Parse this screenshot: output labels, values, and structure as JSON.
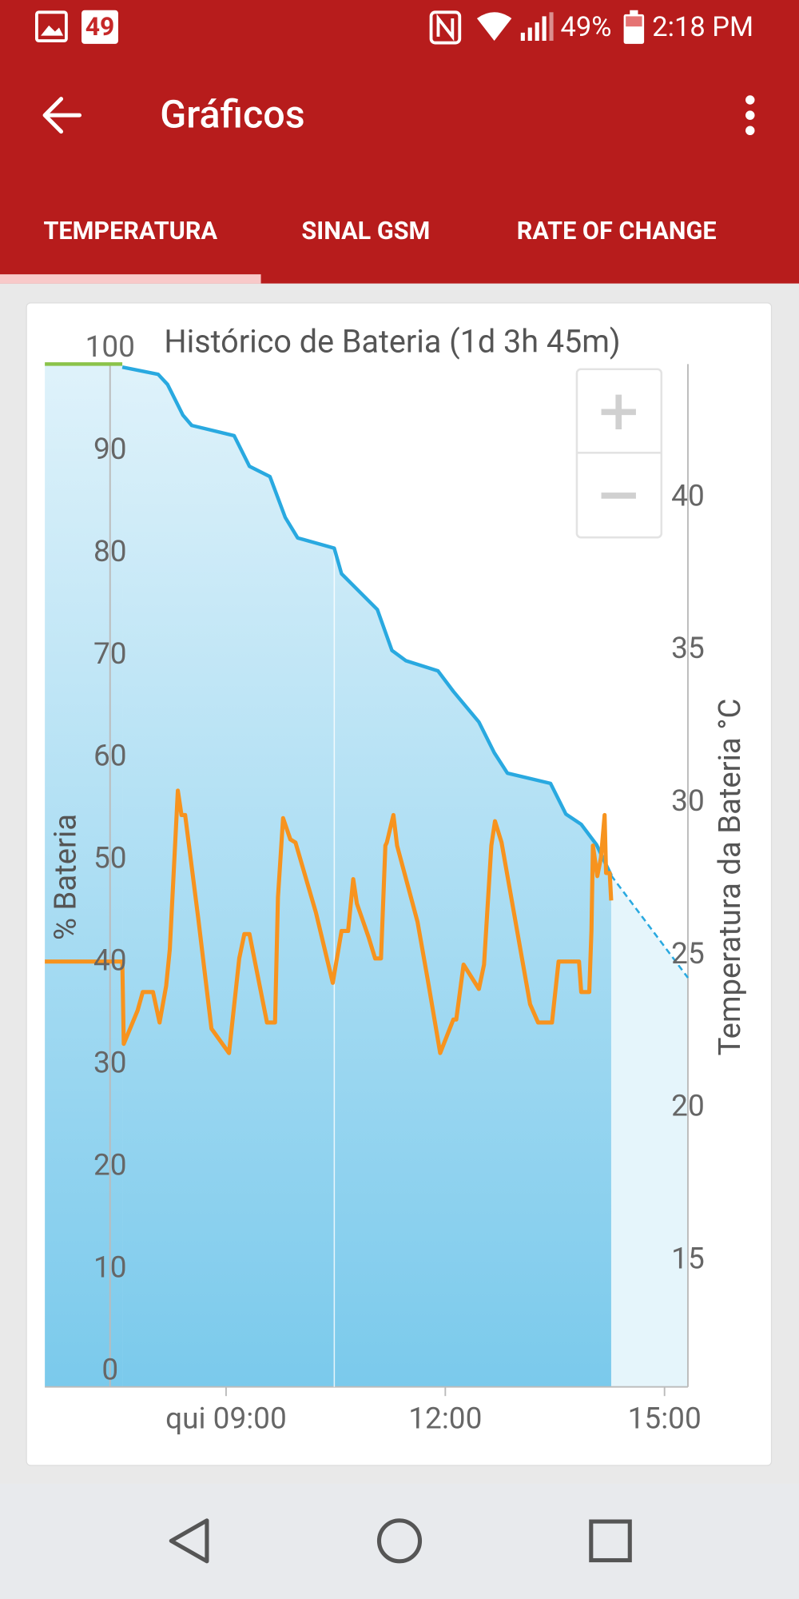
{
  "status_bar": {
    "notification_count": "49",
    "battery": "49%",
    "time": "2:18 PM"
  },
  "app_bar": {
    "title": "Gráficos"
  },
  "tabs": [
    "TEMPERATURA",
    "SINAL GSM",
    "RATE OF CHANGE"
  ],
  "chart_data": {
    "type": "line",
    "title": "Histórico de Bateria (1d 3h 45m)",
    "y_label": "% Bateria",
    "y2_label": "Temperatura da Bateria °C",
    "xlim": [
      6.52,
      15.32
    ],
    "xticks": [
      {
        "value": 9,
        "label": "qui 09:00"
      },
      {
        "value": 12,
        "label": "12:00"
      },
      {
        "value": 15,
        "label": "15:00"
      }
    ],
    "ylim": [
      0,
      100
    ],
    "yticks": [
      0,
      10,
      20,
      30,
      40,
      50,
      60,
      70,
      80,
      90,
      100
    ],
    "y2lim": [
      10.86,
      44.38
    ],
    "y2ticks": [
      15,
      20,
      25,
      30,
      35,
      40
    ],
    "series": [
      {
        "color": "#8bc34a",
        "x": [
          6.52,
          7.58
        ],
        "values": [
          100,
          100
        ]
      },
      {
        "color": "#29a9e0",
        "area": true,
        "x": [
          7.58,
          8.07,
          8.2,
          8.41,
          8.53,
          9.11,
          9.32,
          9.6,
          9.81,
          9.98,
          10.48,
          10.58,
          10.79,
          11.07,
          11.27,
          11.46,
          11.9,
          12.11,
          12.46,
          12.67,
          12.85,
          13.44,
          13.65,
          13.86,
          14.07,
          14.27
        ],
        "values": [
          99.7,
          99,
          98,
          95,
          94,
          93,
          90,
          89,
          85,
          83,
          82,
          79.5,
          78,
          76,
          72,
          71,
          70,
          68,
          65,
          62,
          60,
          59,
          56,
          55,
          53,
          50
        ]
      },
      {
        "color": "#29a9e0",
        "area": true,
        "dashed": true,
        "x": [
          14.27,
          15.32
        ],
        "values": [
          50,
          40
        ]
      },
      {
        "color": "#f7931e",
        "axis": "y2",
        "x": [
          6.52,
          7.58,
          7.6,
          7.79,
          7.86,
          8.0,
          8.09,
          8.18,
          8.23,
          8.34,
          8.39,
          8.44,
          8.62,
          8.8,
          9.04,
          9.18,
          9.25,
          9.32,
          9.56,
          9.67,
          9.71,
          9.78,
          9.88,
          9.95,
          10.23,
          10.46,
          10.58,
          10.67,
          10.74,
          10.79,
          10.95,
          11.04,
          11.12,
          11.18,
          11.2,
          11.29,
          11.34,
          11.62,
          11.76,
          11.93,
          12.11,
          12.15,
          12.25,
          12.46,
          12.53,
          12.63,
          12.68,
          12.77,
          13.16,
          13.27,
          13.46,
          13.55,
          13.83,
          13.86,
          13.97,
          14.0,
          14.02,
          14.08,
          14.13,
          14.18,
          14.2,
          14.25,
          14.27
        ],
        "values": [
          24.8,
          24.8,
          22.1,
          23.2,
          23.8,
          23.8,
          22.8,
          24.0,
          25.2,
          30.4,
          29.6,
          29.6,
          26.2,
          22.6,
          21.8,
          24.9,
          25.7,
          25.7,
          22.8,
          22.8,
          26.9,
          29.5,
          28.8,
          28.7,
          26.4,
          24.1,
          25.8,
          25.8,
          27.5,
          26.7,
          25.6,
          24.9,
          24.9,
          28.6,
          28.7,
          29.6,
          28.6,
          26.1,
          24.2,
          21.8,
          22.9,
          22.9,
          24.7,
          23.9,
          24.7,
          28.6,
          29.4,
          28.7,
          23.4,
          22.8,
          22.8,
          24.8,
          24.8,
          23.8,
          23.8,
          25.8,
          28.6,
          27.6,
          28.2,
          29.6,
          27.7,
          27.7,
          26.8
        ]
      }
    ]
  }
}
